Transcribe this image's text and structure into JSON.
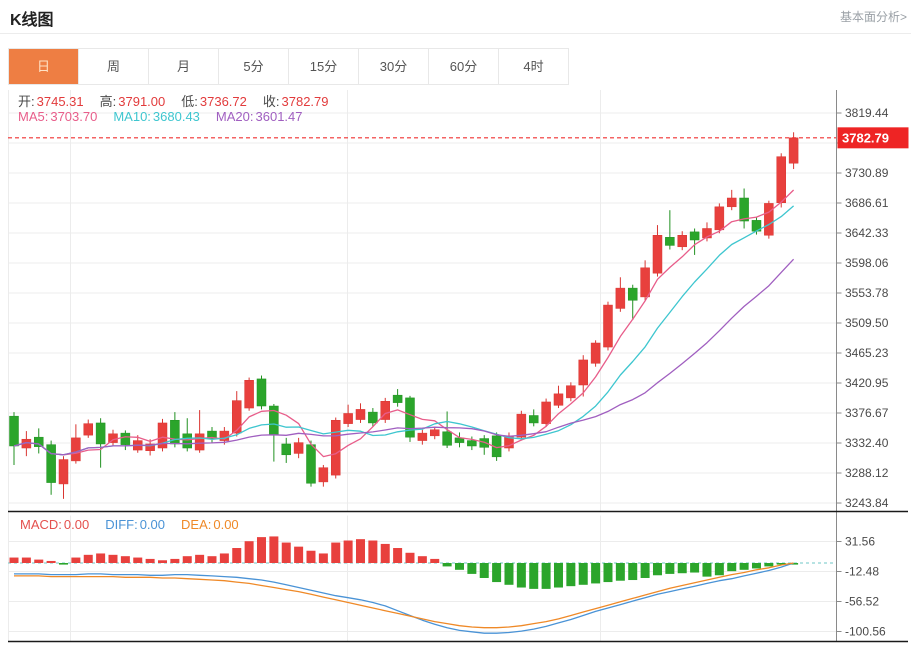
{
  "header": {
    "title": "K线图",
    "analysis_link": "基本面分析>"
  },
  "tabs": [
    {
      "id": "day",
      "label": "日",
      "active": true
    },
    {
      "id": "week",
      "label": "周",
      "active": false
    },
    {
      "id": "month",
      "label": "月",
      "active": false
    },
    {
      "id": "m5",
      "label": "5分",
      "active": false
    },
    {
      "id": "m15",
      "label": "15分",
      "active": false
    },
    {
      "id": "m30",
      "label": "30分",
      "active": false
    },
    {
      "id": "m60",
      "label": "60分",
      "active": false
    },
    {
      "id": "h4",
      "label": "4时",
      "active": false
    }
  ],
  "ohlc": {
    "value_color": "#e23b3c",
    "items": [
      {
        "label": "开:",
        "value": "3745.31"
      },
      {
        "label": "高:",
        "value": "3791.00"
      },
      {
        "label": "低:",
        "value": "3736.72"
      },
      {
        "label": "收:",
        "value": "3782.79"
      }
    ]
  },
  "ma_legend": [
    {
      "id": "ma5",
      "label": "MA5:",
      "value": "3703.70",
      "period": 5,
      "color": "#e85d8a"
    },
    {
      "id": "ma10",
      "label": "MA10:",
      "value": "3680.43",
      "period": 10,
      "color": "#3ec6cf"
    },
    {
      "id": "ma20",
      "label": "MA20:",
      "value": "3601.47",
      "period": 20,
      "color": "#a05fc0"
    }
  ],
  "macd_legend": [
    {
      "id": "macd",
      "label": "MACD:",
      "value": "0.00",
      "color": "#e4504d"
    },
    {
      "id": "diff",
      "label": "DIFF:",
      "value": "0.00",
      "color": "#4a93d6"
    },
    {
      "id": "dea",
      "label": "DEA:",
      "value": "0.00",
      "color": "#ef8927"
    }
  ],
  "chart_data": {
    "type": "candlestick",
    "title": "K线图",
    "legend_position": "top-left",
    "grid": true,
    "y_axis": {
      "ticks": [
        3819.44,
        3730.89,
        3686.61,
        3642.33,
        3598.06,
        3553.78,
        3509.5,
        3465.23,
        3420.95,
        3376.67,
        3332.4,
        3288.12,
        3243.84
      ],
      "hidden_tick": 3775.16,
      "range": [
        3243.84,
        3819.44
      ]
    },
    "current_price": "3782.79",
    "colors": {
      "up": "#e8403d",
      "up_stroke": "#d93632",
      "down": "#2ba52b",
      "down_stroke": "#219121",
      "grid": "#ececec",
      "axis": "#999999",
      "tick_text": "#4a4a4a",
      "separator": "#1a1a1a",
      "price_line": "#f03030",
      "tag_bg": "#ee2424",
      "tag_text": "#ffffff"
    },
    "candles_ohlc": [
      [
        3372,
        3378,
        3300,
        3328
      ],
      [
        3325,
        3350,
        3313,
        3338
      ],
      [
        3341,
        3354,
        3317,
        3327
      ],
      [
        3330,
        3336,
        3256,
        3274
      ],
      [
        3272,
        3313,
        3250,
        3308
      ],
      [
        3306,
        3360,
        3302,
        3340
      ],
      [
        3344,
        3367,
        3340,
        3361
      ],
      [
        3362,
        3369,
        3296,
        3331
      ],
      [
        3333,
        3352,
        3328,
        3346
      ],
      [
        3347,
        3351,
        3322,
        3330
      ],
      [
        3322,
        3344,
        3318,
        3336
      ],
      [
        3321,
        3338,
        3314,
        3331
      ],
      [
        3325,
        3368,
        3320,
        3362
      ],
      [
        3366,
        3378,
        3326,
        3331
      ],
      [
        3346,
        3369,
        3320,
        3325
      ],
      [
        3322,
        3381,
        3318,
        3346
      ],
      [
        3350,
        3356,
        3332,
        3339
      ],
      [
        3336,
        3356,
        3330,
        3350
      ],
      [
        3347,
        3409,
        3342,
        3395
      ],
      [
        3384,
        3429,
        3380,
        3425
      ],
      [
        3427,
        3432,
        3382,
        3387
      ],
      [
        3387,
        3390,
        3305,
        3345
      ],
      [
        3331,
        3340,
        3303,
        3315
      ],
      [
        3317,
        3340,
        3310,
        3333
      ],
      [
        3330,
        3336,
        3268,
        3273
      ],
      [
        3275,
        3300,
        3268,
        3296
      ],
      [
        3285,
        3370,
        3280,
        3366
      ],
      [
        3361,
        3389,
        3356,
        3376
      ],
      [
        3367,
        3391,
        3362,
        3382
      ],
      [
        3378,
        3384,
        3356,
        3362
      ],
      [
        3367,
        3399,
        3362,
        3394
      ],
      [
        3403,
        3412,
        3386,
        3392
      ],
      [
        3399,
        3402,
        3334,
        3341
      ],
      [
        3336,
        3352,
        3330,
        3347
      ],
      [
        3343,
        3356,
        3338,
        3352
      ],
      [
        3349,
        3379,
        3325,
        3329
      ],
      [
        3340,
        3348,
        3326,
        3333
      ],
      [
        3336,
        3342,
        3322,
        3328
      ],
      [
        3339,
        3344,
        3315,
        3326
      ],
      [
        3343,
        3348,
        3306,
        3312
      ],
      [
        3325,
        3348,
        3320,
        3343
      ],
      [
        3341,
        3380,
        3336,
        3375
      ],
      [
        3373,
        3382,
        3357,
        3362
      ],
      [
        3361,
        3398,
        3356,
        3393
      ],
      [
        3388,
        3417,
        3384,
        3405
      ],
      [
        3399,
        3422,
        3394,
        3417
      ],
      [
        3418,
        3462,
        3401,
        3455
      ],
      [
        3450,
        3484,
        3445,
        3480
      ],
      [
        3474,
        3541,
        3469,
        3536
      ],
      [
        3531,
        3577,
        3526,
        3561
      ],
      [
        3561,
        3566,
        3514,
        3543
      ],
      [
        3548,
        3602,
        3543,
        3591
      ],
      [
        3583,
        3654,
        3578,
        3639
      ],
      [
        3636,
        3676,
        3618,
        3624
      ],
      [
        3622,
        3645,
        3617,
        3639
      ],
      [
        3644,
        3649,
        3610,
        3632
      ],
      [
        3635,
        3658,
        3630,
        3649
      ],
      [
        3647,
        3686,
        3642,
        3681
      ],
      [
        3681,
        3706,
        3676,
        3694
      ],
      [
        3694,
        3708,
        3649,
        3660
      ],
      [
        3661,
        3666,
        3640,
        3645
      ],
      [
        3639,
        3690,
        3634,
        3686
      ],
      [
        3687,
        3760,
        3680,
        3755
      ],
      [
        3745.31,
        3791.0,
        3736.72,
        3782.79
      ]
    ],
    "macd": {
      "y_ticks": [
        31.56,
        -12.48,
        -56.52,
        -100.56
      ],
      "zero_line_color": "#6fc7c7",
      "hist": [
        8,
        8,
        5,
        3,
        -2,
        8,
        12,
        14,
        12,
        10,
        8,
        6,
        4,
        6,
        10,
        12,
        10,
        14,
        22,
        32,
        38,
        39,
        30,
        24,
        18,
        14,
        30,
        33,
        35,
        33,
        28,
        22,
        15,
        10,
        6,
        -5,
        -10,
        -16,
        -22,
        -28,
        -32,
        -36,
        -38,
        -38,
        -36,
        -34,
        -32,
        -30,
        -28,
        -26,
        -25,
        -22,
        -18,
        -16,
        -15,
        -14,
        -20,
        -18,
        -12,
        -10,
        -8,
        -5,
        -2,
        -1
      ],
      "diff": [
        -16,
        -16,
        -16,
        -17,
        -17,
        -17,
        -16,
        -16,
        -17,
        -17,
        -17,
        -18,
        -18,
        -17,
        -17,
        -18,
        -19,
        -20,
        -21,
        -23,
        -25,
        -28,
        -32,
        -36,
        -40,
        -44,
        -48,
        -51,
        -54,
        -58,
        -63,
        -70,
        -77,
        -84,
        -90,
        -95,
        -99,
        -101,
        -103,
        -103,
        -102,
        -100,
        -97,
        -93,
        -88,
        -83,
        -77,
        -71,
        -66,
        -61,
        -56,
        -51,
        -46,
        -42,
        -38,
        -34,
        -30,
        -26,
        -23,
        -19,
        -15,
        -11,
        -6,
        0
      ],
      "dea": [
        -19,
        -19,
        -19,
        -20,
        -20,
        -20,
        -20,
        -20,
        -20,
        -21,
        -21,
        -21,
        -22,
        -22,
        -23,
        -24,
        -25,
        -26,
        -28,
        -30,
        -33,
        -36,
        -39,
        -42,
        -46,
        -50,
        -54,
        -58,
        -62,
        -66,
        -70,
        -74,
        -78,
        -82,
        -86,
        -89,
        -92,
        -94,
        -95,
        -95,
        -94,
        -92,
        -89,
        -86,
        -82,
        -77,
        -72,
        -67,
        -62,
        -57,
        -52,
        -47,
        -42,
        -37,
        -33,
        -29,
        -25,
        -21,
        -17,
        -14,
        -10,
        -7,
        -3,
        0
      ]
    }
  }
}
